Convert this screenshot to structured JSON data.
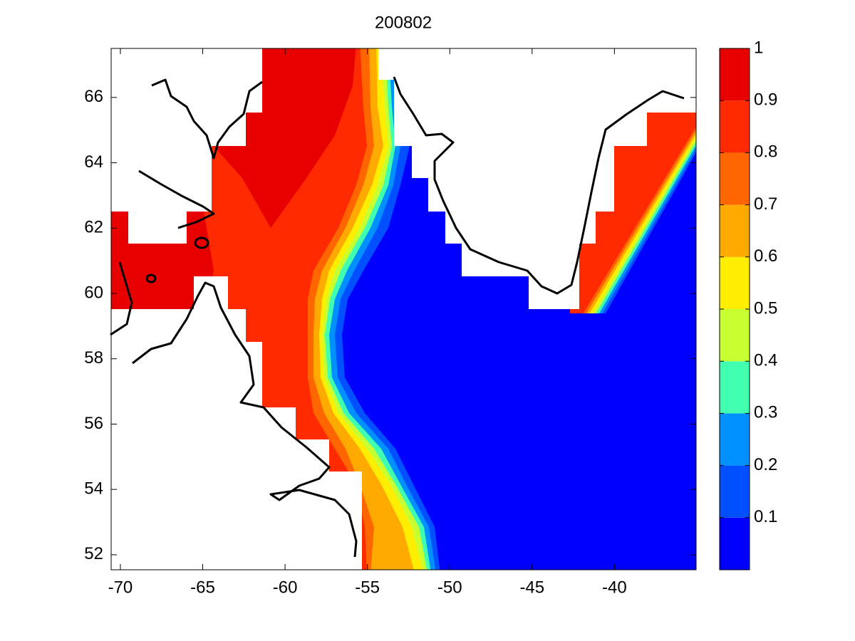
{
  "chart_data": {
    "type": "contour_map",
    "title": "200802",
    "xlim": [
      -70.56,
      -35.04
    ],
    "xticks": [
      -70,
      -65,
      -60,
      -55,
      -50,
      -45,
      -40
    ],
    "ylim": [
      51.54,
      67.5
    ],
    "yticks": [
      52,
      54,
      56,
      58,
      60,
      62,
      64,
      66
    ],
    "colorbar": {
      "levels": [
        0,
        0.1,
        0.2,
        0.3,
        0.4,
        0.5,
        0.6,
        0.7,
        0.8,
        0.9,
        1
      ],
      "colors": [
        "#0000ff",
        "#0050ff",
        "#0090ff",
        "#40ffb0",
        "#c8ff30",
        "#ffee00",
        "#ffaa00",
        "#ff6600",
        "#ff2a00",
        "#e80000"
      ],
      "ylim": [
        0,
        1
      ],
      "ticks": [
        0.1,
        0.2,
        0.3,
        0.4,
        0.5,
        0.6,
        0.7,
        0.8,
        0.9,
        1
      ]
    }
  }
}
